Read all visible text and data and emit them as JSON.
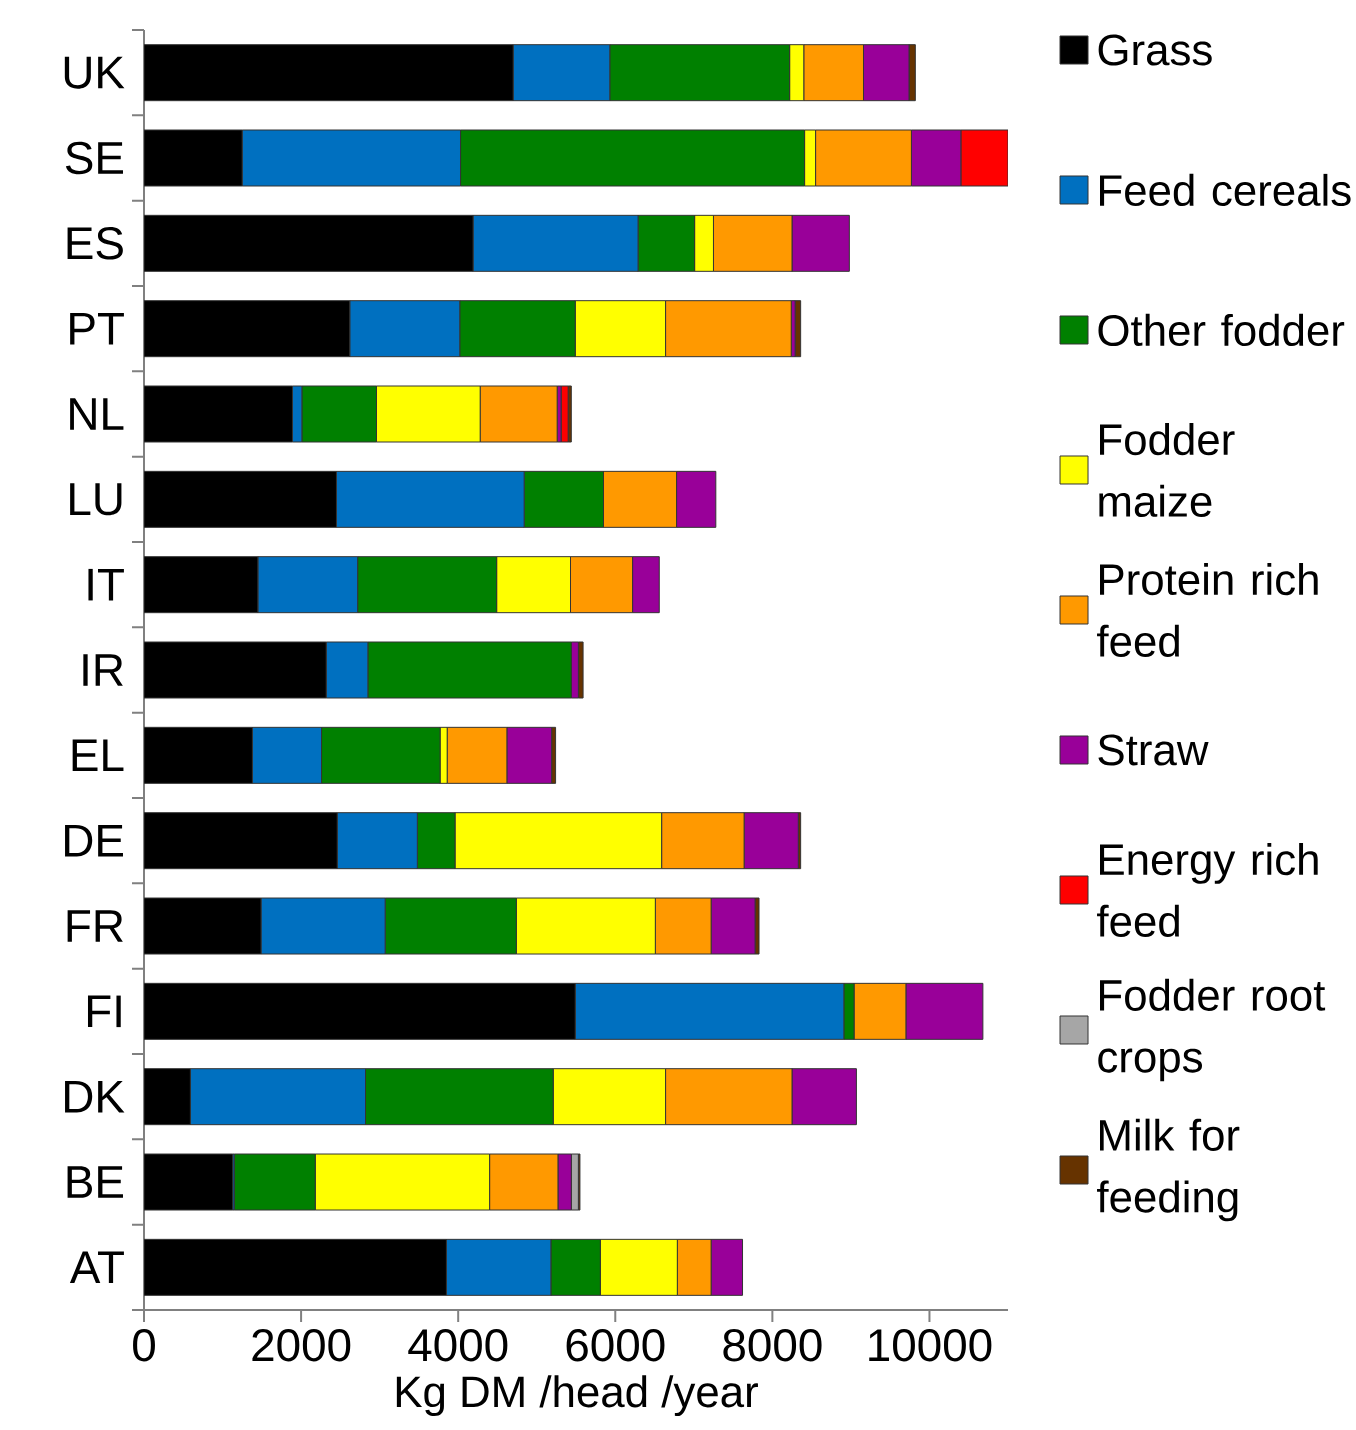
{
  "chart_data": {
    "type": "bar",
    "orientation": "horizontal",
    "stacked": true,
    "categories": [
      "UK",
      "SE",
      "ES",
      "PT",
      "NL",
      "LU",
      "IT",
      "IR",
      "EL",
      "DE",
      "FR",
      "FI",
      "DK",
      "BE",
      "AT"
    ],
    "xlabel": "Kg DM /head /year",
    "xlim": [
      0,
      11000
    ],
    "xticks": [
      0,
      2000,
      4000,
      6000,
      8000,
      10000
    ],
    "grid": false,
    "legend": "right",
    "series": [
      {
        "name": "Grass",
        "color": "#000000",
        "values": [
          4700,
          1250,
          4190,
          2620,
          1890,
          2450,
          1450,
          2320,
          1380,
          2460,
          1490,
          5490,
          590,
          1130,
          3850
        ]
      },
      {
        "name": "Feed cereals",
        "color": "#0070c0",
        "values": [
          1230,
          2780,
          2100,
          1400,
          120,
          2390,
          1270,
          530,
          880,
          1020,
          1580,
          3420,
          2230,
          20,
          1330
        ]
      },
      {
        "name": "Other fodder",
        "color": "#008000",
        "values": [
          2290,
          4380,
          720,
          1470,
          950,
          1010,
          1770,
          2590,
          1510,
          480,
          1670,
          130,
          2390,
          1030,
          630
        ]
      },
      {
        "name": "Fodder maize",
        "color": "#ffff00",
        "values": [
          180,
          140,
          240,
          1150,
          1320,
          0,
          940,
          0,
          90,
          2630,
          1770,
          0,
          1430,
          2220,
          980
        ]
      },
      {
        "name": "Protein rich feed",
        "color": "#ff9900",
        "values": [
          760,
          1220,
          1000,
          1600,
          980,
          930,
          790,
          0,
          760,
          1050,
          710,
          660,
          1610,
          870,
          430
        ]
      },
      {
        "name": "Straw",
        "color": "#990099",
        "values": [
          580,
          630,
          730,
          50,
          50,
          500,
          340,
          90,
          570,
          690,
          560,
          980,
          820,
          170,
          400
        ]
      },
      {
        "name": "Energy rich feed",
        "color": "#ff0000",
        "values": [
          0,
          600,
          0,
          0,
          90,
          0,
          0,
          0,
          0,
          0,
          0,
          0,
          0,
          0,
          0
        ]
      },
      {
        "name": "Fodder root crops",
        "color": "#a6a6a6",
        "values": [
          0,
          0,
          0,
          0,
          0,
          0,
          0,
          0,
          0,
          0,
          0,
          0,
          0,
          90,
          0
        ]
      },
      {
        "name": "Milk for feeding",
        "color": "#663300",
        "values": [
          80,
          0,
          0,
          70,
          40,
          0,
          0,
          60,
          50,
          30,
          50,
          0,
          0,
          20,
          0
        ]
      }
    ]
  }
}
